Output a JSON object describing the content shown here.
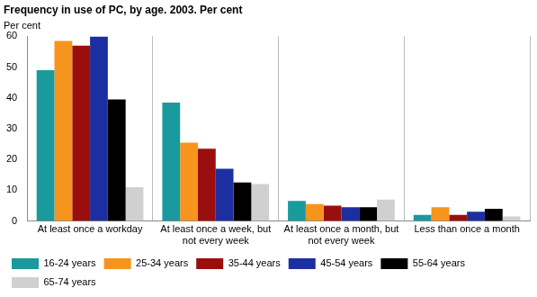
{
  "chart_data": {
    "type": "bar",
    "title": "Frequency in use of PC, by age. 2003. Per cent",
    "ylabel": "Per cent",
    "categories": [
      "At least once a workday",
      "At least once a week, but not every week",
      "At least once a month, but not every week",
      "Less than once a month"
    ],
    "series": [
      {
        "name": "16-24 years",
        "color": "#1a9a9c",
        "values": [
          49,
          38.5,
          6.5,
          2
        ]
      },
      {
        "name": "25-34 years",
        "color": "#f7941d",
        "values": [
          58.5,
          25.5,
          5.5,
          4.5
        ]
      },
      {
        "name": "35-44 years",
        "color": "#9b0e0e",
        "values": [
          57,
          23.5,
          5,
          2
        ]
      },
      {
        "name": "45-54 years",
        "color": "#1c2fa0",
        "values": [
          60,
          17,
          4.5,
          3
        ]
      },
      {
        "name": "55-64 years",
        "color": "#000000",
        "values": [
          39.5,
          12.5,
          4.5,
          4
        ]
      },
      {
        "name": "65-74 years",
        "color": "#d0d0d0",
        "values": [
          11,
          12,
          7,
          1.5
        ]
      }
    ],
    "ylim": [
      0,
      60
    ],
    "yticks": [
      0,
      10,
      20,
      30,
      40,
      50,
      60
    ],
    "grid": "x",
    "legend": "bottom"
  }
}
